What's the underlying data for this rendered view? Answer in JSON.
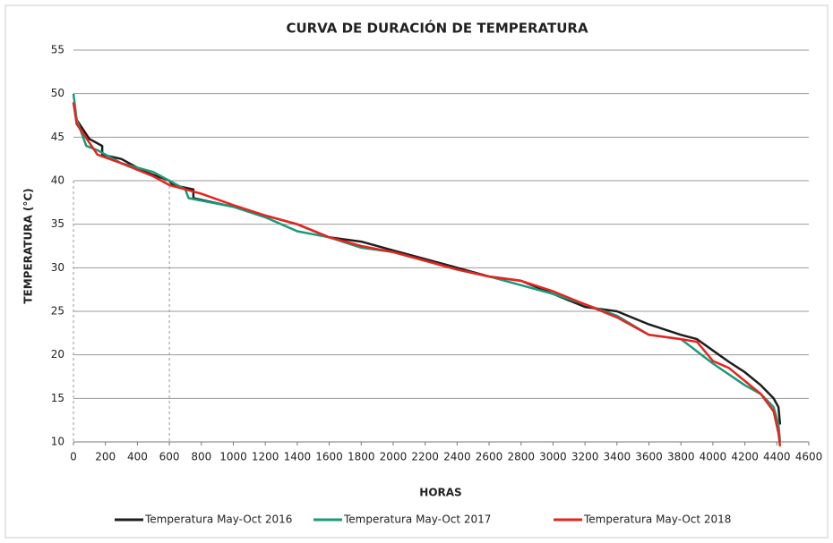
{
  "chart_data": {
    "type": "line",
    "title": "CURVA DE DURACIÓN DE TEMPERATURA",
    "x_label": "HORAS",
    "y_label": "TEMPERATURA (°C)",
    "xlim": [
      0,
      4600
    ],
    "xticks": [
      0,
      200,
      400,
      600,
      800,
      1000,
      1200,
      1400,
      1600,
      1800,
      2000,
      2200,
      2400,
      2600,
      2800,
      3000,
      3200,
      3400,
      3600,
      3800,
      4000,
      4200,
      4400,
      4600
    ],
    "ylim": [
      10,
      55
    ],
    "yticks": [
      10,
      15,
      20,
      25,
      30,
      35,
      40,
      45,
      50,
      55
    ],
    "grid": true,
    "legend": "bottom",
    "reference_lines": {
      "x": 600,
      "y": 40
    },
    "series": [
      {
        "name": "Temperatura May-Oct 2016",
        "color": "#1e1e1e",
        "x": [
          0,
          20,
          100,
          180,
          180,
          300,
          450,
          600,
          620,
          750,
          750,
          1000,
          1200,
          1400,
          1600,
          1800,
          2000,
          2200,
          2400,
          2600,
          2800,
          3000,
          3200,
          3400,
          3600,
          3800,
          3900,
          4000,
          4100,
          4200,
          4300,
          4380,
          4410,
          4420
        ],
        "values": [
          49,
          47,
          44.8,
          44,
          43,
          42.5,
          41,
          40,
          39.5,
          39,
          38,
          37,
          36,
          35,
          33.5,
          33,
          32,
          31,
          30,
          29,
          28.5,
          27,
          25.5,
          25,
          23.5,
          22.3,
          21.8,
          20.5,
          19.2,
          18,
          16.5,
          15,
          14,
          12
        ]
      },
      {
        "name": "Temperatura May-Oct 2017",
        "color": "#1a9a78",
        "x": [
          0,
          20,
          80,
          150,
          300,
          500,
          700,
          720,
          1000,
          1200,
          1400,
          1600,
          1800,
          2000,
          2200,
          2400,
          2600,
          2800,
          3000,
          3200,
          3400,
          3600,
          3800,
          4000,
          4200,
          4300,
          4380,
          4410,
          4420
        ],
        "values": [
          50,
          47,
          44,
          43.5,
          42,
          41,
          39,
          38,
          37,
          35.8,
          34.2,
          33.5,
          32.3,
          31.8,
          30.8,
          29.8,
          29,
          28,
          27,
          25.8,
          24.5,
          22.3,
          21.8,
          19,
          16.5,
          15.5,
          14,
          12,
          10
        ]
      },
      {
        "name": "Temperatura May-Oct 2018",
        "color": "#e8231e",
        "x": [
          0,
          20,
          150,
          300,
          500,
          600,
          800,
          1000,
          1200,
          1400,
          1600,
          1800,
          2000,
          2200,
          2400,
          2600,
          2800,
          3000,
          3200,
          3400,
          3600,
          3800,
          3900,
          4000,
          4100,
          4200,
          4300,
          4380,
          4410,
          4420
        ],
        "values": [
          49,
          46.5,
          43,
          42,
          40.5,
          39.5,
          38.5,
          37.2,
          36,
          35,
          33.5,
          32.5,
          31.8,
          30.8,
          29.8,
          29,
          28.5,
          27.3,
          25.8,
          24.3,
          22.3,
          21.8,
          21.5,
          19.3,
          18.5,
          17,
          15.5,
          13.5,
          11,
          9.5
        ]
      }
    ]
  }
}
